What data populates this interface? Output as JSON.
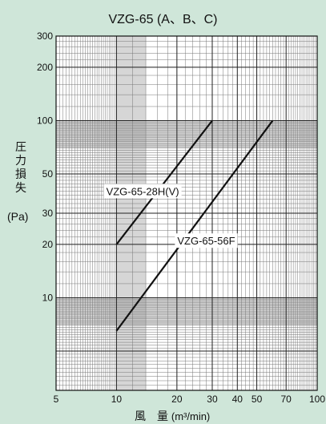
{
  "chart_data": {
    "type": "line",
    "title": "VZG-65 (A、B、C)",
    "ylabel_chars": [
      "圧",
      "力",
      "損",
      "失"
    ],
    "ylabel_unit": "(Pa)",
    "xlabel_chars": [
      "風",
      "量"
    ],
    "xlabel_unit": "(m³/min)",
    "x_scale": "log",
    "y_scale": "log",
    "xlim": [
      5,
      100
    ],
    "ylim": [
      3,
      300
    ],
    "x_ticks": [
      5,
      10,
      20,
      30,
      40,
      50,
      70,
      100
    ],
    "y_ticks": [
      10,
      20,
      30,
      50,
      100,
      200,
      300
    ],
    "grid": true,
    "legend": "none",
    "series": [
      {
        "name": "VZG-65-28H(V)",
        "x": [
          10,
          30
        ],
        "y": [
          20,
          100
        ]
      },
      {
        "name": "VZG-65-56F",
        "x": [
          10,
          60
        ],
        "y": [
          6.5,
          100
        ]
      }
    ]
  },
  "colors": {
    "background": "#cfe6d9",
    "plot_background": "#ffffff",
    "grid_band": "#b5b5b5",
    "line": "#111111"
  }
}
